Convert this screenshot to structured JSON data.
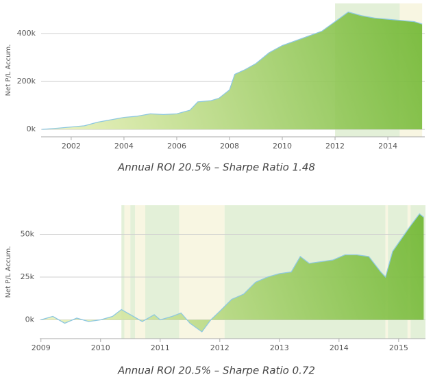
{
  "chart_data": [
    {
      "type": "area",
      "title": "Annual ROI 20.5% – Sharpe Ratio 1.48",
      "y_label": "Net P/L Accum.",
      "x": [
        2000.9,
        2001.5,
        2002,
        2002.5,
        2003,
        2003.5,
        2004,
        2004.5,
        2005,
        2005.5,
        2006,
        2006.5,
        2006.8,
        2007.3,
        2007.6,
        2008,
        2008.2,
        2008.6,
        2009,
        2009.5,
        2010,
        2010.5,
        2011,
        2011.5,
        2012,
        2012.5,
        2013,
        2013.5,
        2014,
        2014.5,
        2015,
        2015.3
      ],
      "values": [
        0,
        5000,
        10000,
        15000,
        30000,
        40000,
        50000,
        55000,
        65000,
        62000,
        65000,
        80000,
        115000,
        120000,
        130000,
        165000,
        230000,
        250000,
        275000,
        320000,
        350000,
        370000,
        390000,
        410000,
        450000,
        490000,
        475000,
        465000,
        460000,
        455000,
        450000,
        440000
      ],
      "color": "#6cb52d",
      "line_color": "#8ec8e0",
      "xlim": [
        2000.86,
        2015.4
      ],
      "xticks": [
        2002,
        2004,
        2006,
        2008,
        2010,
        2012,
        2014
      ],
      "ylim": [
        -31000,
        526000
      ],
      "yticks": [
        {
          "value": 0,
          "label": "0k"
        },
        {
          "value": 200000,
          "label": "200k"
        },
        {
          "value": 400000,
          "label": "400k"
        }
      ],
      "grid": true,
      "bands": [
        {
          "from": 2012,
          "to": 2014.45,
          "color": "#e3f0d8"
        },
        {
          "from": 2014.45,
          "to": 2015.3,
          "color": "#f8f6e2"
        }
      ]
    },
    {
      "type": "area",
      "title": "Annual ROI 20.5% – Sharpe Ratio 0.72",
      "y_label": "Net P/L Accum.",
      "x": [
        2009,
        2009.2,
        2009.4,
        2009.6,
        2009.8,
        2010,
        2010.2,
        2010.35,
        2010.5,
        2010.7,
        2010.9,
        2011,
        2011.2,
        2011.35,
        2011.5,
        2011.7,
        2011.85,
        2012,
        2012.2,
        2012.4,
        2012.6,
        2012.8,
        2013,
        2013.2,
        2013.35,
        2013.5,
        2013.7,
        2013.9,
        2014.1,
        2014.3,
        2014.5,
        2014.7,
        2014.78,
        2014.9,
        2015,
        2015.2,
        2015.35,
        2015.42
      ],
      "values": [
        0,
        2000,
        -2000,
        1000,
        -1000,
        0,
        2000,
        6000,
        3000,
        -1000,
        3000,
        0,
        2000,
        4000,
        -2000,
        -7000,
        0,
        5000,
        12000,
        15000,
        22000,
        25000,
        27000,
        28000,
        37000,
        33000,
        34000,
        35000,
        38000,
        38000,
        37000,
        28000,
        25000,
        40000,
        45000,
        55000,
        62000,
        60000
      ],
      "color": "#6cb52d",
      "line_color": "#8ec8e0",
      "xlim": [
        2008.98,
        2015.45
      ],
      "xticks": [
        2009,
        2010,
        2011,
        2012,
        2013,
        2014,
        2015
      ],
      "ylim": [
        -11000,
        67000
      ],
      "yticks": [
        {
          "value": 0,
          "label": "0k"
        },
        {
          "value": 25000,
          "label": "25k"
        },
        {
          "value": 50000,
          "label": "50k"
        }
      ],
      "grid": true,
      "bands": [
        {
          "from": 2010.35,
          "to": 2010.4,
          "color": "#e3f0d8"
        },
        {
          "from": 2010.4,
          "to": 2010.5,
          "color": "#f8f6e2"
        },
        {
          "from": 2010.5,
          "to": 2010.58,
          "color": "#e3f0d8"
        },
        {
          "from": 2010.58,
          "to": 2010.75,
          "color": "#f8f6e2"
        },
        {
          "from": 2010.75,
          "to": 2011.32,
          "color": "#e3f0d8"
        },
        {
          "from": 2011.32,
          "to": 2012.08,
          "color": "#f8f6e2"
        },
        {
          "from": 2012.08,
          "to": 2014.78,
          "color": "#e3f0d8"
        },
        {
          "from": 2014.78,
          "to": 2014.82,
          "color": "#f8f6e2"
        },
        {
          "from": 2014.82,
          "to": 2015.15,
          "color": "#e3f0d8"
        },
        {
          "from": 2015.15,
          "to": 2015.2,
          "color": "#f8f6e2"
        },
        {
          "from": 2015.2,
          "to": 2015.45,
          "color": "#e3f0d8"
        }
      ]
    }
  ]
}
